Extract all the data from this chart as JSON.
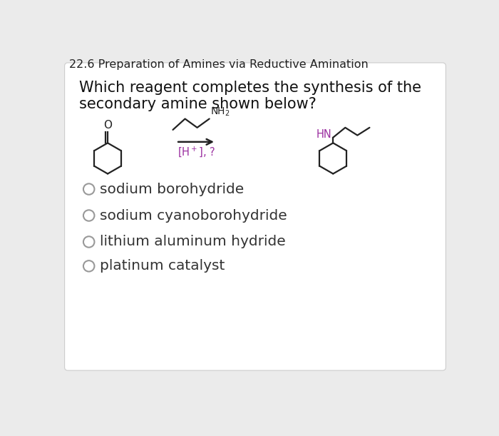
{
  "title": "22.6 Preparation of Amines via Reductive Amination",
  "title_fontsize": 11.5,
  "question_line1": "Which reagent completes the synthesis of the",
  "question_line2": "secondary amine shown below?",
  "question_fontsize": 15,
  "options": [
    "sodium borohydride",
    "sodium cyanoborohydride",
    "lithium aluminum hydride",
    "platinum catalyst"
  ],
  "options_fontsize": 14.5,
  "bg_color": "#ebebeb",
  "card_color": "#ffffff",
  "title_color": "#222222",
  "question_color": "#111111",
  "option_color": "#333333",
  "hn_color": "#9b2fa0",
  "mol_color": "#222222",
  "circle_edge_color": "#999999",
  "arrow_color": "#111111",
  "condition_color": "#9b2fa0"
}
